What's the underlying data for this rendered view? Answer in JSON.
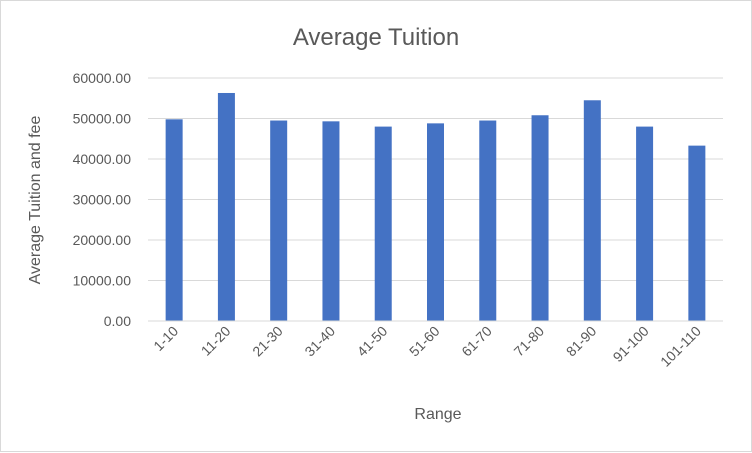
{
  "chart_data": {
    "type": "bar",
    "title": "Average Tuition",
    "xlabel": "Range",
    "ylabel": "Average Tuition and fee",
    "categories": [
      "1-10",
      "11-20",
      "21-30",
      "31-40",
      "41-50",
      "51-60",
      "61-70",
      "71-80",
      "81-90",
      "91-100",
      "101-110"
    ],
    "values": [
      49800,
      56300,
      49500,
      49300,
      48000,
      48800,
      49500,
      50800,
      54500,
      48000,
      43300
    ],
    "ylim": [
      0,
      60000
    ],
    "yticks": [
      "0.00",
      "10000.00",
      "20000.00",
      "30000.00",
      "40000.00",
      "50000.00",
      "60000.00"
    ],
    "grid": true,
    "legend": "none",
    "bar_color": "#4472C4"
  }
}
